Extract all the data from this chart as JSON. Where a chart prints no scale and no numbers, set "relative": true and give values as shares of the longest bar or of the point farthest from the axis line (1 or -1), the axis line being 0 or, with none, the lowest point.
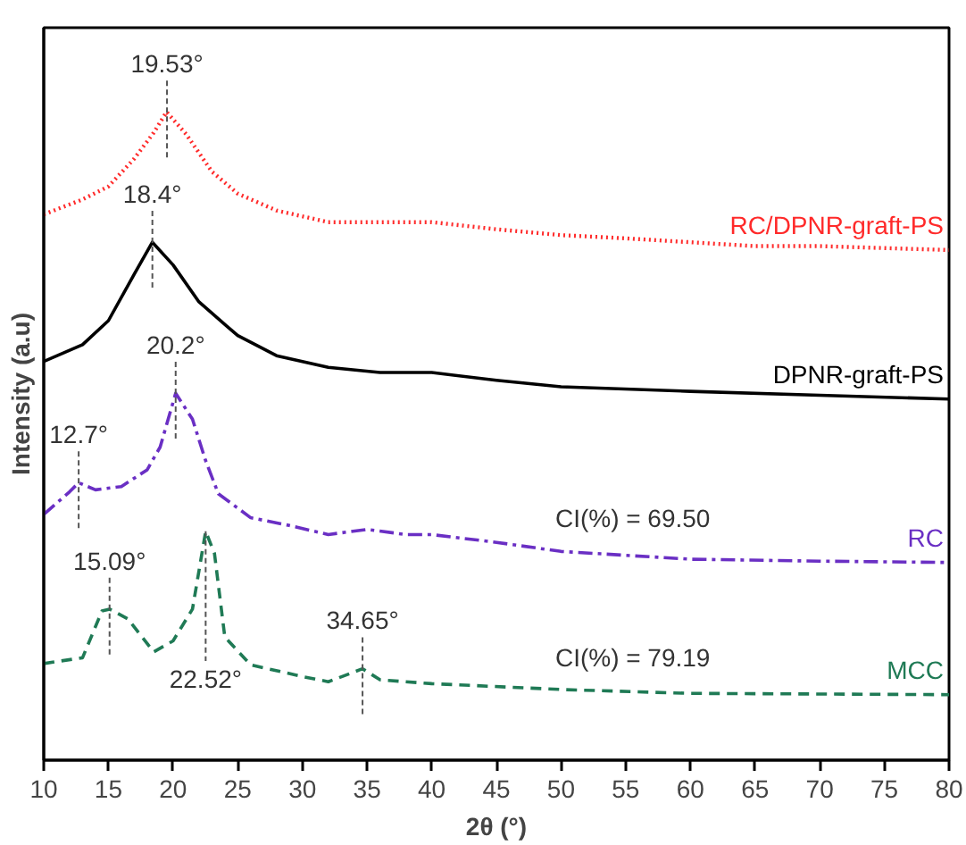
{
  "chart_data": {
    "type": "line",
    "relative": true,
    "xlabel": "2θ (°)",
    "ylabel": "Intensity (a.u)",
    "x": [
      10,
      13,
      15,
      17,
      18.5,
      19.5,
      21,
      23,
      25,
      28,
      32,
      36,
      40,
      45,
      50,
      55,
      60,
      65,
      70,
      75,
      80
    ],
    "xlim": [
      10,
      80
    ],
    "xticks": [
      10,
      15,
      20,
      25,
      30,
      35,
      40,
      45,
      50,
      55,
      60,
      65,
      70,
      75,
      80
    ],
    "grid": false,
    "series": [
      {
        "name": "RC/DPNR-graft-PS",
        "color": "#ff2a2a",
        "line_style": "dotted",
        "values": [
          0.842,
          0.865,
          0.885,
          0.928,
          0.968,
          1.0,
          0.966,
          0.908,
          0.874,
          0.848,
          0.83,
          0.83,
          0.83,
          0.819,
          0.81,
          0.805,
          0.799,
          0.793,
          0.793,
          0.79,
          0.787
        ]
      },
      {
        "name": "DPNR-graft-PS",
        "color": "#000000",
        "line_style": "solid",
        "x": [
          10,
          13,
          15,
          17,
          18.4,
          20,
          22,
          25,
          28,
          32,
          36,
          40,
          45,
          50,
          60,
          70,
          80
        ],
        "values": [
          0.615,
          0.641,
          0.678,
          0.75,
          0.799,
          0.764,
          0.707,
          0.655,
          0.624,
          0.606,
          0.598,
          0.598,
          0.586,
          0.576,
          0.569,
          0.563,
          0.557
        ]
      },
      {
        "name": "RC",
        "color": "#6a2fc4",
        "line_style": "dashdot",
        "x": [
          10,
          12,
          12.7,
          14,
          16,
          18,
          19,
          20.2,
          21.5,
          22.5,
          23.5,
          26,
          29,
          32,
          35,
          38,
          40,
          45,
          50,
          55,
          60,
          70,
          80
        ],
        "values": [
          0.379,
          0.414,
          0.428,
          0.417,
          0.422,
          0.448,
          0.483,
          0.566,
          0.526,
          0.463,
          0.411,
          0.374,
          0.362,
          0.348,
          0.356,
          0.348,
          0.348,
          0.336,
          0.322,
          0.316,
          0.31,
          0.307,
          0.305
        ]
      },
      {
        "name": "MCC",
        "color": "#1f7a55",
        "line_style": "dashed",
        "x": [
          10,
          13,
          14.5,
          15.09,
          16.5,
          18.5,
          20,
          21.5,
          22.52,
          23.2,
          24,
          26,
          30,
          32,
          34.65,
          36,
          40,
          50,
          60,
          80
        ],
        "values": [
          0.149,
          0.158,
          0.23,
          0.233,
          0.218,
          0.167,
          0.184,
          0.233,
          0.353,
          0.319,
          0.19,
          0.147,
          0.129,
          0.121,
          0.141,
          0.124,
          0.118,
          0.109,
          0.103,
          0.101
        ]
      }
    ],
    "annotations": [
      {
        "text": "19.53°",
        "x": 19.53,
        "y": 1.0
      },
      {
        "text": "18.4°",
        "x": 18.4,
        "y": 0.799
      },
      {
        "text": "20.2°",
        "x": 20.2,
        "y": 0.566
      },
      {
        "text": "12.7°",
        "x": 12.7,
        "y": 0.428
      },
      {
        "text": "15.09°",
        "x": 15.09,
        "y": 0.233
      },
      {
        "text": "22.52°",
        "x": 22.52,
        "y": 0.353
      },
      {
        "text": "34.65°",
        "x": 34.65,
        "y": 0.141
      },
      "CI(%) = 69.50",
      "CI(%) = 79.19"
    ]
  }
}
